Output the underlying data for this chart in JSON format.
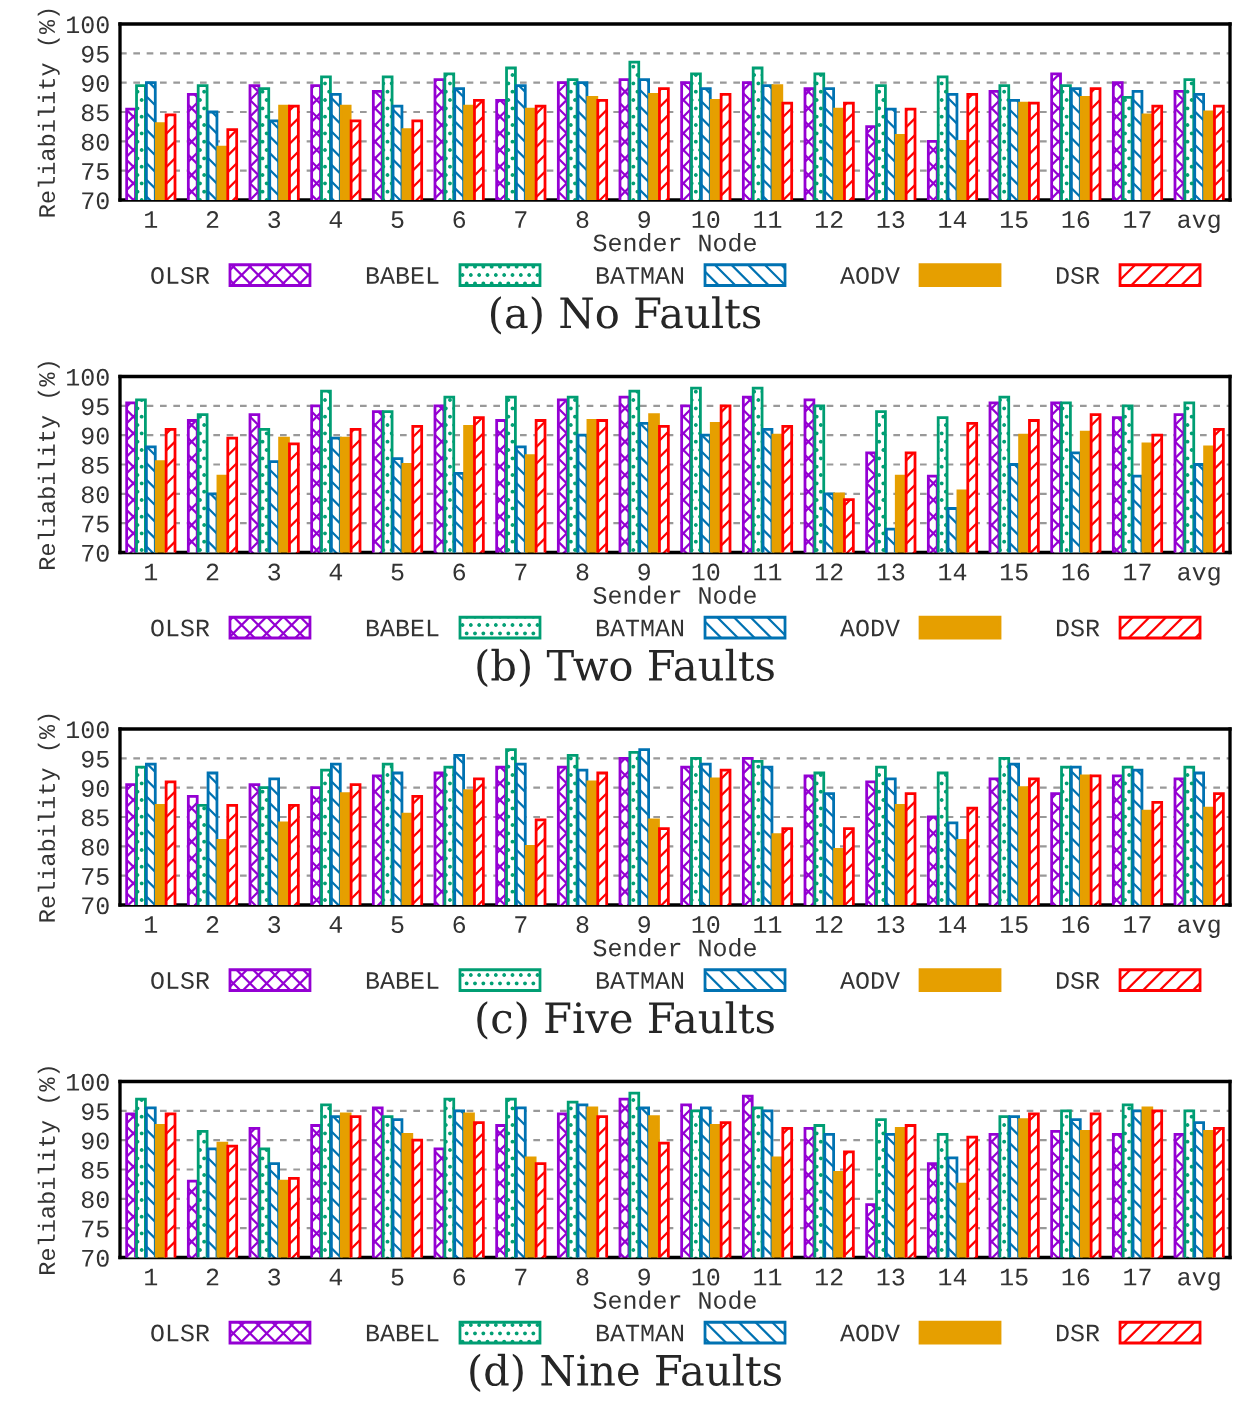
{
  "chart_data": [
    {
      "type": "bar",
      "title": "(a) No Faults",
      "xlabel": "Sender Node",
      "ylabel": "Reliability (%)",
      "categories": [
        "1",
        "2",
        "3",
        "4",
        "5",
        "6",
        "7",
        "8",
        "9",
        "10",
        "11",
        "12",
        "13",
        "14",
        "15",
        "16",
        "17",
        "avg"
      ],
      "ylim": [
        70,
        100
      ],
      "yticks": [
        70,
        75,
        80,
        85,
        90,
        95,
        100
      ],
      "grid": "y",
      "legend": "bottom",
      "series": [
        {
          "name": "OLSR",
          "color": "#9400d3",
          "values": [
            85.5,
            88,
            89.5,
            89.5,
            88.5,
            90.5,
            87,
            90,
            90.5,
            90,
            90,
            89,
            82.5,
            80,
            88.5,
            91.5,
            90,
            88.5
          ]
        },
        {
          "name": "BABEL",
          "color": "#009e73",
          "values": [
            89.5,
            89.5,
            89,
            91,
            91,
            91.5,
            92.5,
            90.5,
            93.5,
            91.5,
            92.5,
            91.5,
            89.5,
            91,
            89.5,
            89.5,
            87.5,
            90.5
          ]
        },
        {
          "name": "BATMAN",
          "color": "#0072b2",
          "values": [
            90,
            85,
            83.5,
            88,
            86,
            89,
            89.5,
            90,
            90.5,
            89,
            89.5,
            89,
            85.5,
            88,
            87,
            89,
            88.5,
            88
          ]
        },
        {
          "name": "AODV",
          "color": "#e69f00",
          "values": [
            83,
            79,
            86,
            86,
            82,
            86,
            85.5,
            87.5,
            88,
            87,
            89.5,
            85.5,
            81,
            80,
            86.5,
            87.5,
            84.5,
            85
          ]
        },
        {
          "name": "DSR",
          "color": "#ff0000",
          "values": [
            84.5,
            82,
            86,
            83.5,
            83.5,
            87,
            86,
            87,
            89,
            88,
            86.5,
            86.5,
            85.5,
            88,
            86.5,
            89,
            86,
            86
          ]
        }
      ]
    },
    {
      "type": "bar",
      "title": "(b) Two Faults",
      "xlabel": "Sender Node",
      "ylabel": "Reliability (%)",
      "categories": [
        "1",
        "2",
        "3",
        "4",
        "5",
        "6",
        "7",
        "8",
        "9",
        "10",
        "11",
        "12",
        "13",
        "14",
        "15",
        "16",
        "17",
        "avg"
      ],
      "ylim": [
        70,
        100
      ],
      "yticks": [
        70,
        75,
        80,
        85,
        90,
        95,
        100
      ],
      "grid": "y",
      "legend": "bottom",
      "series": [
        {
          "name": "OLSR",
          "color": "#9400d3",
          "values": [
            95.5,
            92.5,
            93.5,
            95,
            94,
            95,
            92.5,
            96,
            96.5,
            95,
            96.5,
            96,
            87,
            83,
            95.5,
            95.5,
            93,
            93.5
          ]
        },
        {
          "name": "BABEL",
          "color": "#009e73",
          "values": [
            96,
            93.5,
            91,
            97.5,
            94,
            96.5,
            96.5,
            96.5,
            97.5,
            98,
            98,
            95,
            94,
            93,
            96.5,
            95.5,
            95,
            95.5
          ]
        },
        {
          "name": "BATMAN",
          "color": "#0072b2",
          "values": [
            88,
            80,
            85.5,
            89.5,
            86,
            83.5,
            88,
            90,
            92,
            90,
            91,
            80,
            74,
            77.5,
            85,
            87,
            83,
            85
          ]
        },
        {
          "name": "AODV",
          "color": "#e69f00",
          "values": [
            85.5,
            83,
            89.5,
            89.5,
            85,
            91.5,
            86.5,
            92.5,
            93.5,
            92,
            90,
            80,
            83,
            80.5,
            90,
            90.5,
            88.5,
            88
          ]
        },
        {
          "name": "DSR",
          "color": "#ff0000",
          "values": [
            91,
            89.5,
            88.5,
            91,
            91.5,
            93,
            92.5,
            92.5,
            91.5,
            95,
            91.5,
            79,
            87,
            92,
            92.5,
            93.5,
            90,
            91
          ]
        }
      ]
    },
    {
      "type": "bar",
      "title": "(c) Five Faults",
      "xlabel": "Sender Node",
      "ylabel": "Reliability (%)",
      "categories": [
        "1",
        "2",
        "3",
        "4",
        "5",
        "6",
        "7",
        "8",
        "9",
        "10",
        "11",
        "12",
        "13",
        "14",
        "15",
        "16",
        "17",
        "avg"
      ],
      "ylim": [
        70,
        100
      ],
      "yticks": [
        70,
        75,
        80,
        85,
        90,
        95,
        100
      ],
      "grid": "y",
      "legend": "bottom",
      "series": [
        {
          "name": "OLSR",
          "color": "#9400d3",
          "values": [
            90.5,
            88.5,
            90.5,
            90,
            92,
            92.5,
            93.5,
            93.5,
            95,
            93.5,
            95,
            92,
            91,
            85,
            91.5,
            89,
            92,
            91.5
          ]
        },
        {
          "name": "BABEL",
          "color": "#009e73",
          "values": [
            93.5,
            87,
            90,
            93,
            94,
            93.5,
            96.5,
            95.5,
            96,
            95,
            94.5,
            92.5,
            93.5,
            92.5,
            95,
            93.5,
            93.5,
            93.5
          ]
        },
        {
          "name": "BATMAN",
          "color": "#0072b2",
          "values": [
            94,
            92.5,
            91.5,
            94,
            92.5,
            95.5,
            94,
            93,
            96.5,
            94,
            93.5,
            89,
            91.5,
            84,
            94,
            93.5,
            93,
            92.5
          ]
        },
        {
          "name": "AODV",
          "color": "#e69f00",
          "values": [
            87,
            81,
            84,
            89,
            85.5,
            89.5,
            80,
            91,
            84.5,
            91.5,
            82,
            79.5,
            87,
            81,
            90,
            92,
            86,
            86.5
          ]
        },
        {
          "name": "DSR",
          "color": "#ff0000",
          "values": [
            91,
            87,
            87,
            90.5,
            88.5,
            91.5,
            84.5,
            92.5,
            83,
            93,
            83,
            83,
            89,
            86.5,
            91.5,
            92,
            87.5,
            89
          ]
        }
      ]
    },
    {
      "type": "bar",
      "title": "(d) Nine Faults",
      "xlabel": "Sender Node",
      "ylabel": "Reliability (%)",
      "categories": [
        "1",
        "2",
        "3",
        "4",
        "5",
        "6",
        "7",
        "8",
        "9",
        "10",
        "11",
        "12",
        "13",
        "14",
        "15",
        "16",
        "17",
        "avg"
      ],
      "ylim": [
        70,
        100
      ],
      "yticks": [
        70,
        75,
        80,
        85,
        90,
        95,
        100
      ],
      "grid": "y",
      "legend": "bottom",
      "series": [
        {
          "name": "OLSR",
          "color": "#9400d3",
          "values": [
            94.5,
            83,
            92,
            92.5,
            95.5,
            88.5,
            92.5,
            94.5,
            97,
            96,
            97.5,
            92,
            79,
            86,
            91,
            91.5,
            91,
            91
          ]
        },
        {
          "name": "BABEL",
          "color": "#009e73",
          "values": [
            97,
            91.5,
            88.5,
            96,
            94,
            97,
            97,
            96.5,
            98,
            95,
            95.5,
            92.5,
            93.5,
            91,
            94,
            95,
            96,
            95
          ]
        },
        {
          "name": "BATMAN",
          "color": "#0072b2",
          "values": [
            95.5,
            88.5,
            86,
            94,
            93.5,
            95,
            95.5,
            96,
            95.5,
            95.5,
            95,
            91,
            91,
            87,
            94,
            93.5,
            95,
            93
          ]
        },
        {
          "name": "AODV",
          "color": "#e69f00",
          "values": [
            92.5,
            89.5,
            83,
            94.5,
            91,
            94.5,
            87,
            95.5,
            94,
            92.5,
            87,
            84.5,
            92,
            82.5,
            93.5,
            91.5,
            95.5,
            91.5
          ]
        },
        {
          "name": "DSR",
          "color": "#ff0000",
          "values": [
            94.5,
            89,
            83.5,
            94,
            90,
            93,
            86,
            94,
            89.5,
            93,
            92,
            88,
            92.5,
            90.5,
            94.5,
            94.5,
            95,
            92
          ]
        }
      ]
    }
  ]
}
